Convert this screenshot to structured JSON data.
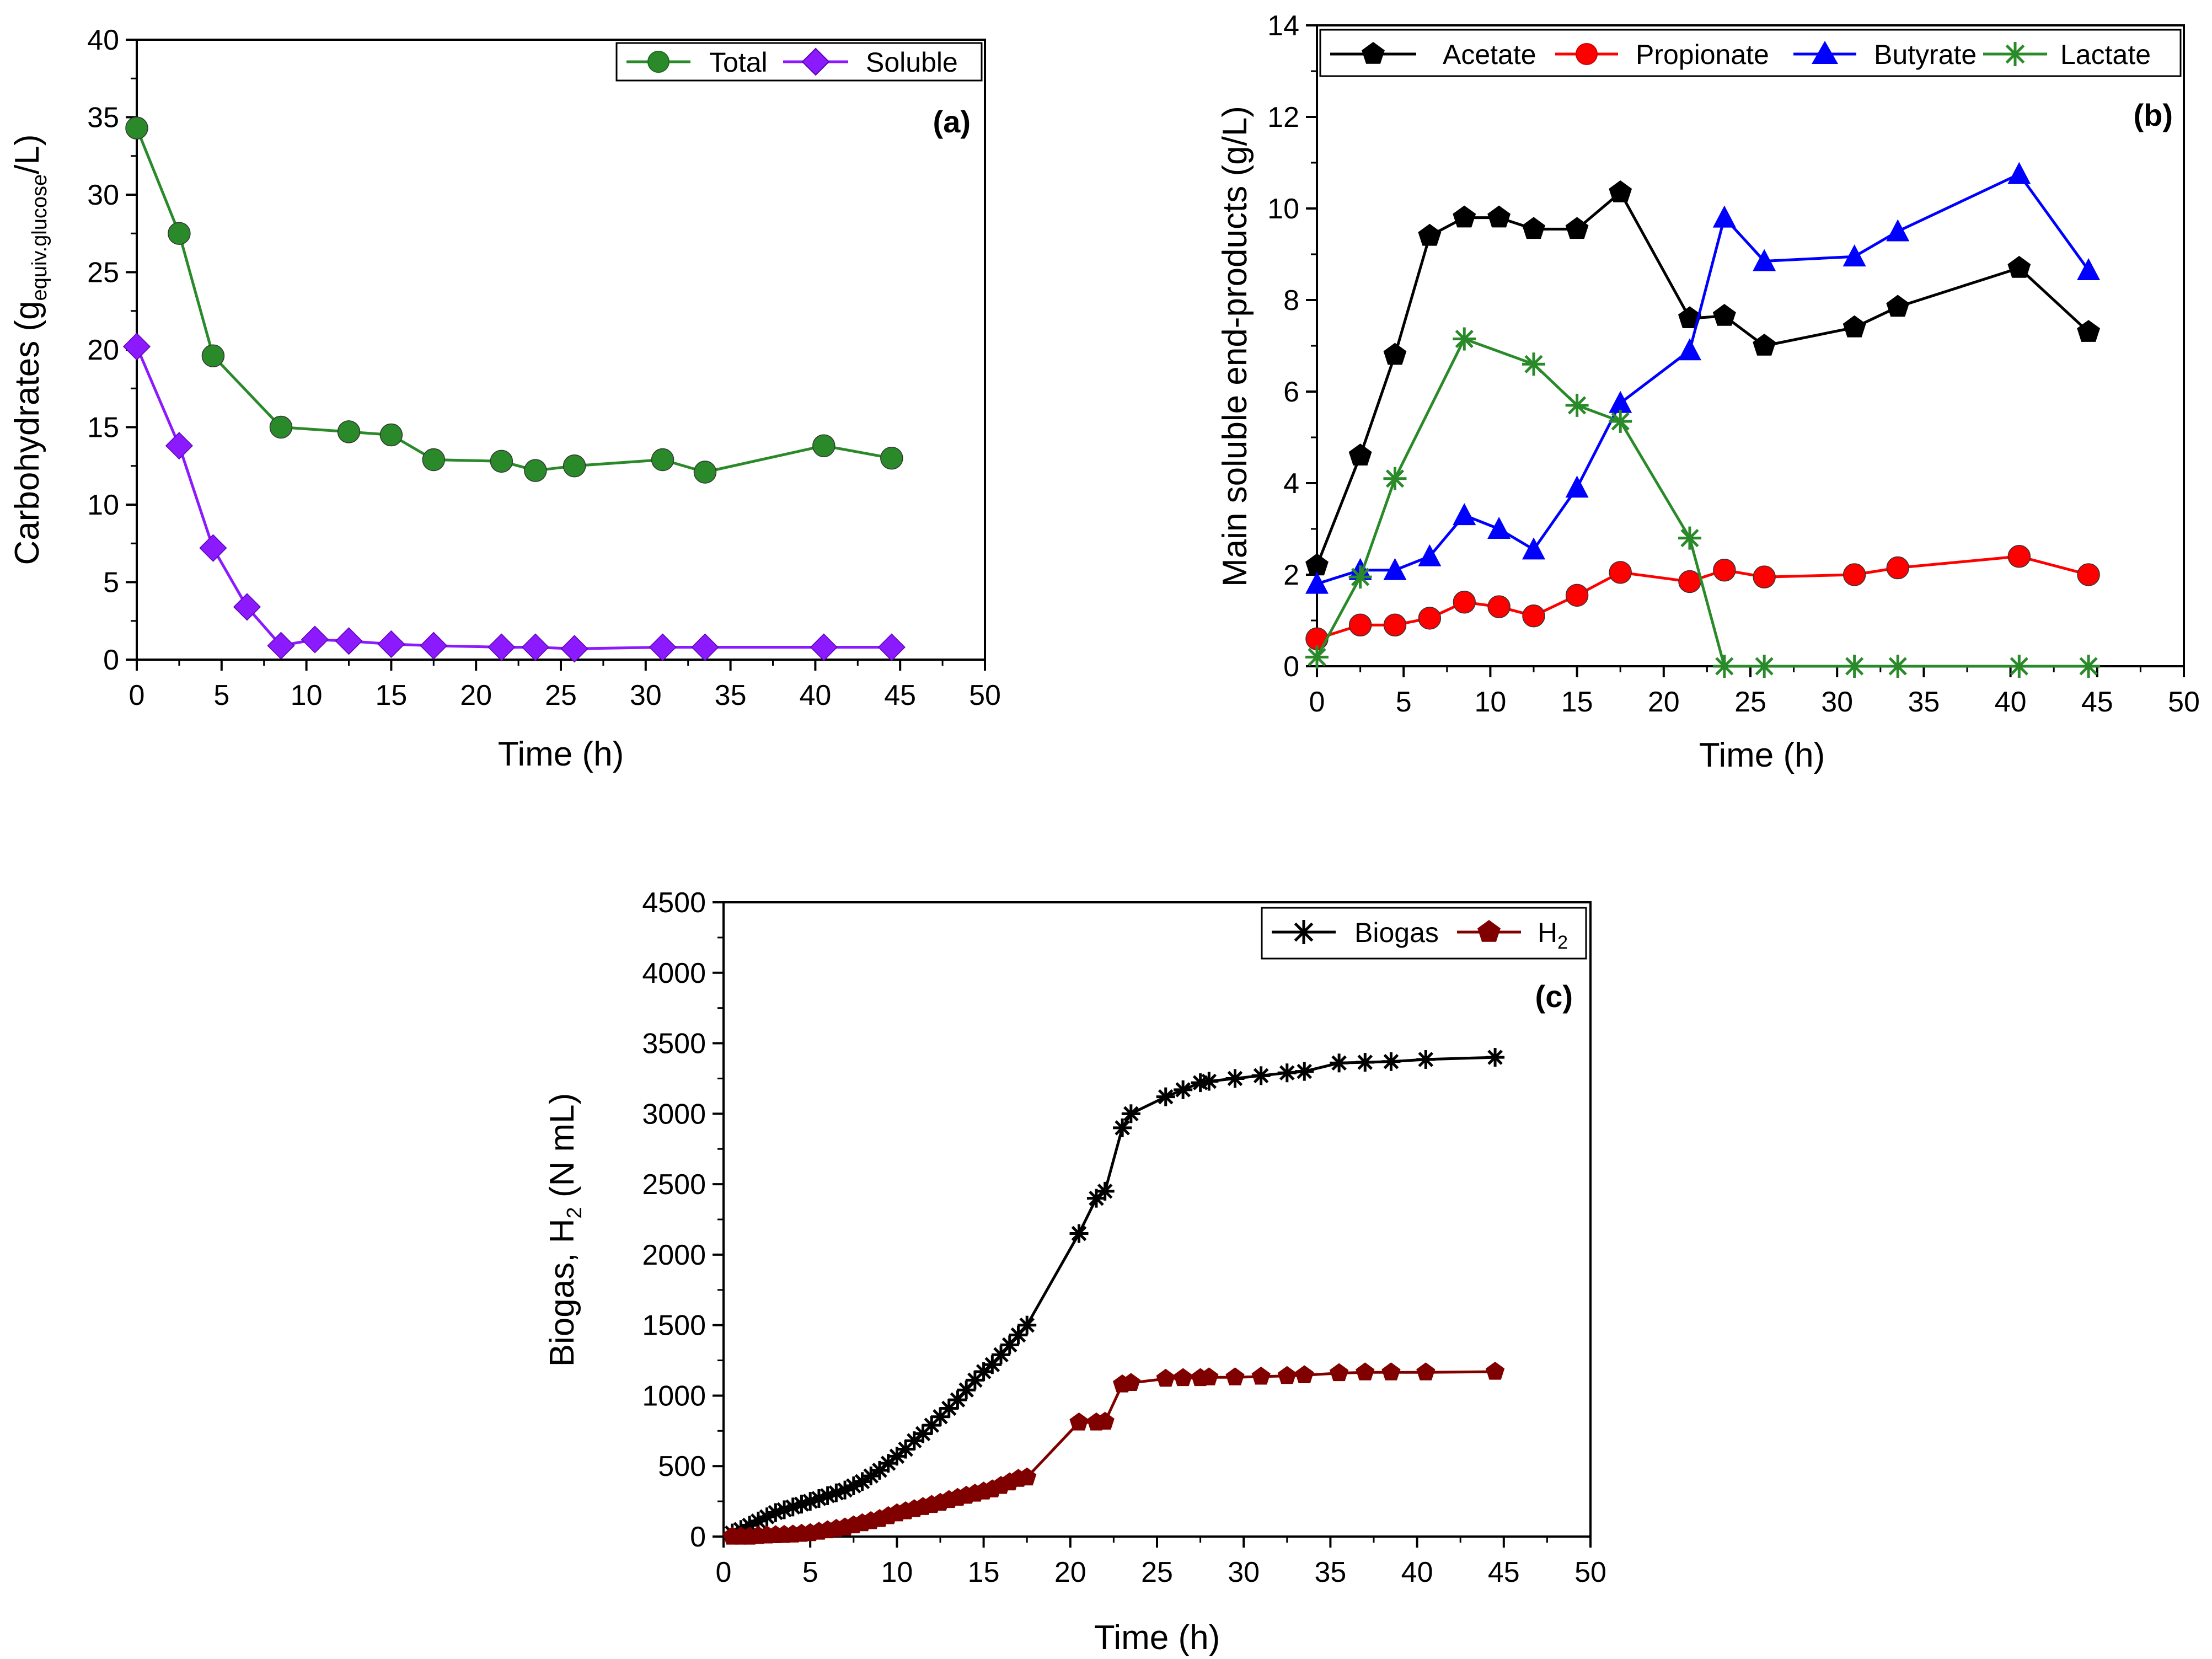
{
  "chart_data": [
    {
      "type": "line",
      "panel_label": "(a)",
      "xlabel": "Time (h)",
      "ylabel_main": "Carbohydrates (g",
      "ylabel_sub": "equiv.glucose",
      "ylabel_end": "/L)",
      "xlim": [
        0,
        50
      ],
      "ylim": [
        0,
        40
      ],
      "xticks": [
        0,
        5,
        10,
        15,
        20,
        25,
        30,
        35,
        40,
        45,
        50
      ],
      "yticks": [
        0,
        5,
        10,
        15,
        20,
        25,
        30,
        35,
        40
      ],
      "legend_position": "top-right",
      "series": [
        {
          "name": "Total",
          "color": "#2a8a2a",
          "marker": "circle",
          "x": [
            0,
            2.5,
            4.5,
            8.5,
            12.5,
            15,
            17.5,
            21.5,
            23.5,
            25.8,
            31,
            33.5,
            40.5,
            44.5
          ],
          "y": [
            34.3,
            27.5,
            19.6,
            15.0,
            14.7,
            14.5,
            12.9,
            12.8,
            12.2,
            12.5,
            12.9,
            12.1,
            13.8,
            13.0
          ]
        },
        {
          "name": "Soluble",
          "color": "#8c1aff",
          "marker": "diamond",
          "x": [
            0,
            2.5,
            4.5,
            6.5,
            8.5,
            10.5,
            12.5,
            15,
            17.5,
            21.5,
            23.5,
            25.8,
            31,
            33.5,
            40.5,
            44.5
          ],
          "y": [
            20.2,
            13.8,
            7.2,
            3.4,
            0.9,
            1.3,
            1.2,
            1.0,
            0.9,
            0.8,
            0.8,
            0.7,
            0.8,
            0.8,
            0.8,
            0.8
          ]
        }
      ]
    },
    {
      "type": "line",
      "panel_label": "(b)",
      "xlabel": "Time (h)",
      "ylabel": "Main soluble end-products (g/L)",
      "xlim": [
        0,
        50
      ],
      "ylim": [
        0,
        14
      ],
      "xticks": [
        0,
        5,
        10,
        15,
        20,
        25,
        30,
        35,
        40,
        45,
        50
      ],
      "yticks": [
        0,
        2,
        4,
        6,
        8,
        10,
        12,
        14
      ],
      "legend_position": "top",
      "series": [
        {
          "name": "Acetate",
          "color": "#000000",
          "marker": "pentagon",
          "x": [
            0,
            2.5,
            4.5,
            6.5,
            8.5,
            10.5,
            12.5,
            15,
            17.5,
            21.5,
            23.5,
            25.8,
            31,
            33.5,
            40.5,
            44.5
          ],
          "y": [
            2.2,
            4.6,
            6.8,
            9.4,
            9.8,
            9.8,
            9.55,
            9.55,
            10.35,
            7.6,
            7.65,
            7.0,
            7.4,
            7.85,
            8.7,
            7.3
          ]
        },
        {
          "name": "Propionate",
          "color": "#ff0000",
          "marker": "circle",
          "x": [
            0,
            2.5,
            4.5,
            6.5,
            8.5,
            10.5,
            12.5,
            15,
            17.5,
            21.5,
            23.5,
            25.8,
            31,
            33.5,
            40.5,
            44.5
          ],
          "y": [
            0.6,
            0.9,
            0.9,
            1.05,
            1.4,
            1.3,
            1.1,
            1.55,
            2.05,
            1.85,
            2.1,
            1.95,
            2.0,
            2.15,
            2.4,
            2.0
          ]
        },
        {
          "name": "Butyrate",
          "color": "#0000ff",
          "marker": "triangle",
          "x": [
            0,
            2.5,
            4.5,
            6.5,
            8.5,
            10.5,
            12.5,
            15,
            17.5,
            21.5,
            23.5,
            25.8,
            31,
            33.5,
            40.5,
            44.5
          ],
          "y": [
            1.8,
            2.1,
            2.1,
            2.4,
            3.3,
            3.0,
            2.55,
            3.9,
            5.75,
            6.9,
            9.8,
            8.85,
            8.95,
            9.5,
            10.75,
            8.65
          ]
        },
        {
          "name": "Lactate",
          "color": "#2a8a2a",
          "marker": "asterisk",
          "x": [
            0,
            2.5,
            4.5,
            8.5,
            12.5,
            15,
            17.5,
            21.5,
            23.5,
            25.8,
            31,
            33.5,
            40.5,
            44.5
          ],
          "y": [
            0.2,
            1.95,
            4.1,
            7.15,
            6.6,
            5.7,
            5.35,
            2.8,
            0,
            0,
            0,
            0,
            0,
            0
          ]
        }
      ]
    },
    {
      "type": "line",
      "panel_label": "(c)",
      "xlabel": "Time (h)",
      "ylabel_main": "Biogas, H",
      "ylabel_sub": "2",
      "ylabel_end": " (N mL)",
      "xlim": [
        0,
        50
      ],
      "ylim": [
        0,
        4500
      ],
      "xticks": [
        0,
        5,
        10,
        15,
        20,
        25,
        30,
        35,
        40,
        45,
        50
      ],
      "yticks": [
        0,
        500,
        1000,
        1500,
        2000,
        2500,
        3000,
        3500,
        4000,
        4500
      ],
      "legend_position": "top-right",
      "series": [
        {
          "name": "Biogas",
          "color": "#000000",
          "marker": "asterisk",
          "x": [
            0.5,
            1,
            1.5,
            2,
            2.5,
            3,
            3.5,
            4,
            4.5,
            5,
            5.5,
            6,
            6.5,
            7,
            7.5,
            8,
            8.5,
            9,
            9.5,
            10,
            10.5,
            11,
            11.5,
            12,
            12.5,
            13,
            13.5,
            14,
            14.5,
            15,
            15.5,
            16,
            16.5,
            17,
            17.5,
            20.5,
            21.5,
            22,
            23,
            23.5,
            25.5,
            26.5,
            27.5,
            28,
            29.5,
            31,
            32.5,
            33.5,
            35.5,
            37,
            38.5,
            40.5,
            44.5
          ],
          "y": [
            25,
            50,
            80,
            110,
            140,
            170,
            190,
            210,
            230,
            250,
            270,
            290,
            310,
            330,
            360,
            390,
            430,
            470,
            520,
            570,
            620,
            680,
            730,
            790,
            850,
            910,
            970,
            1040,
            1110,
            1170,
            1220,
            1290,
            1360,
            1430,
            1500,
            2150,
            2400,
            2450,
            2900,
            3000,
            3120,
            3170,
            3220,
            3230,
            3250,
            3270,
            3290,
            3300,
            3360,
            3365,
            3370,
            3385,
            3400
          ]
        },
        {
          "name": "H",
          "name_sub": "2",
          "color": "#800000",
          "marker": "pentagon",
          "x": [
            0.5,
            1,
            1.5,
            2,
            2.5,
            3,
            3.5,
            4,
            4.5,
            5,
            5.5,
            6,
            6.5,
            7,
            7.5,
            8,
            8.5,
            9,
            9.5,
            10,
            10.5,
            11,
            11.5,
            12,
            12.5,
            13,
            13.5,
            14,
            14.5,
            15,
            15.5,
            16,
            16.5,
            17,
            17.5,
            20.5,
            21.5,
            22,
            23,
            23.5,
            25.5,
            26.5,
            27.5,
            28,
            29.5,
            31,
            32.5,
            33.5,
            35.5,
            37,
            38.5,
            40.5,
            44.5
          ],
          "y": [
            0,
            0,
            0,
            5,
            8,
            10,
            12,
            15,
            20,
            25,
            35,
            45,
            55,
            65,
            80,
            95,
            110,
            125,
            145,
            165,
            180,
            195,
            210,
            225,
            240,
            260,
            275,
            290,
            305,
            320,
            335,
            360,
            385,
            410,
            420,
            810,
            810,
            815,
            1080,
            1090,
            1120,
            1125,
            1125,
            1130,
            1130,
            1135,
            1140,
            1145,
            1160,
            1165,
            1165,
            1165,
            1170
          ]
        }
      ]
    }
  ]
}
